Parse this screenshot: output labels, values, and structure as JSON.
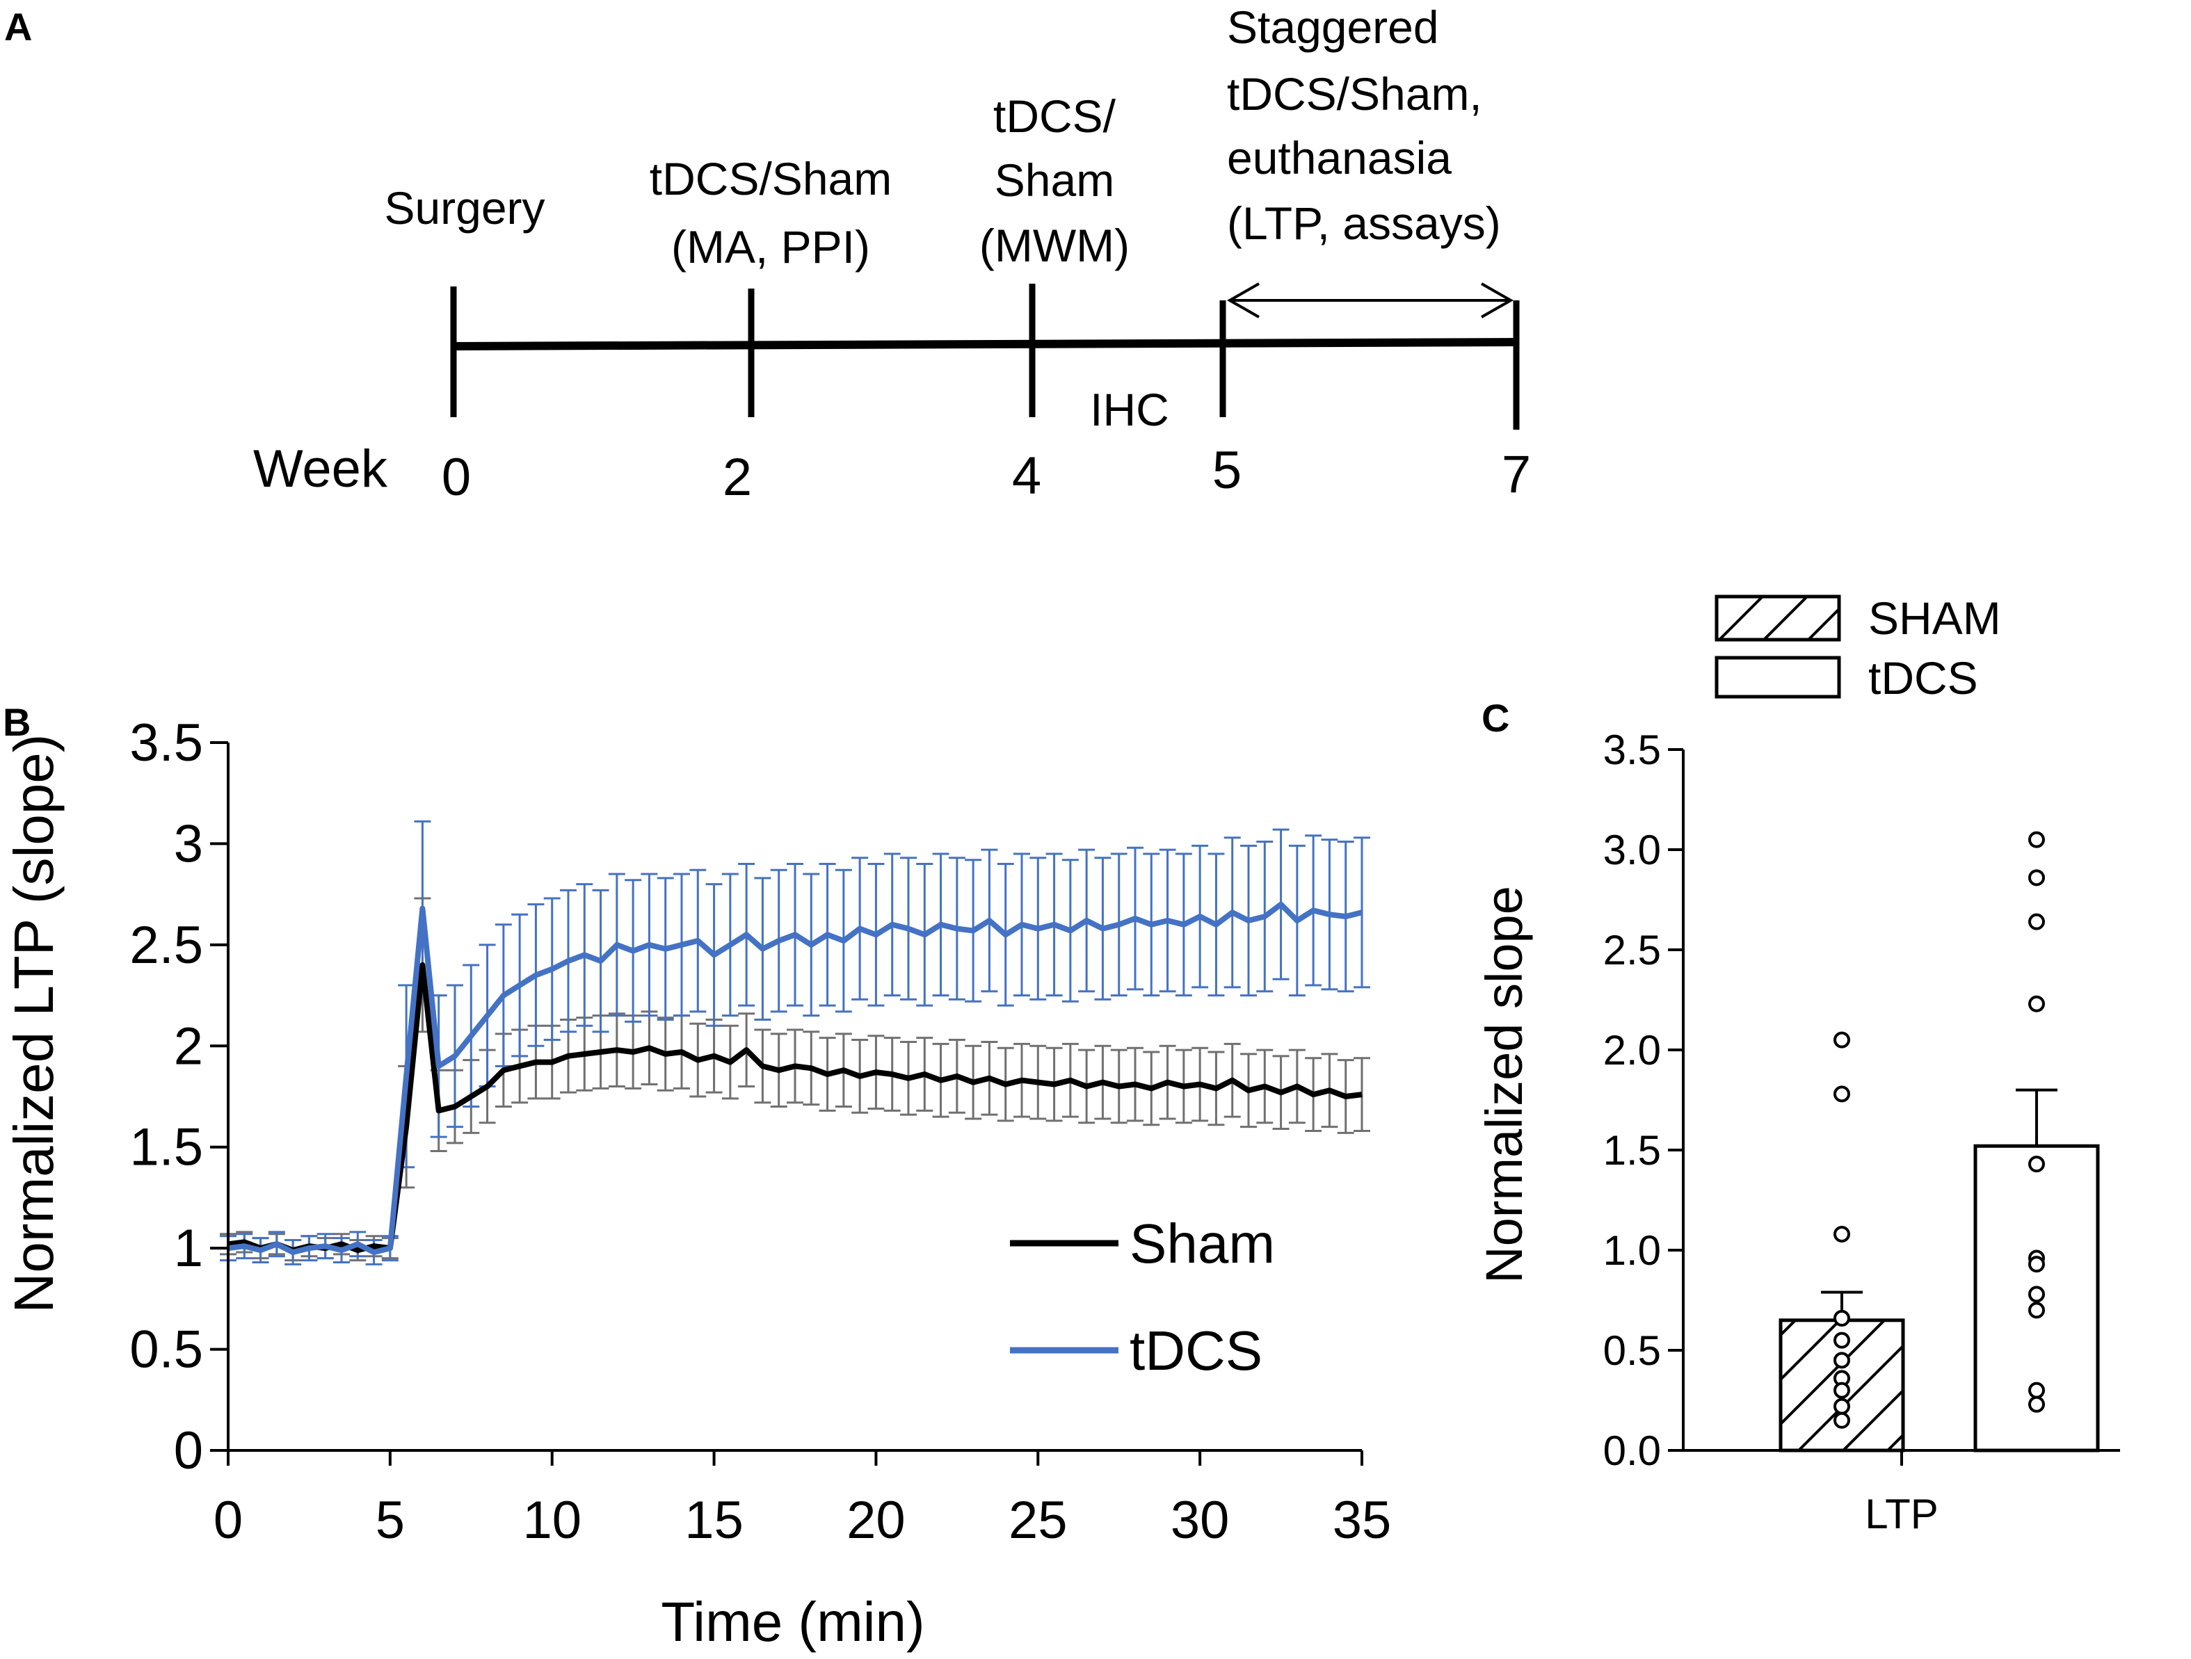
{
  "panels": {
    "A": {
      "letter": "A"
    },
    "B": {
      "letter": "B"
    },
    "C": {
      "letter": "C"
    }
  },
  "timeline": {
    "week_label": "Week",
    "events": [
      {
        "week": "0",
        "lines": [
          "Surgery"
        ]
      },
      {
        "week": "2",
        "lines": [
          "tDCS/Sham",
          "(MA, PPI)"
        ]
      },
      {
        "week": "4",
        "lines": [
          "tDCS/",
          "Sham",
          "(MWM)"
        ]
      },
      {
        "week": "5",
        "lines": [
          "Staggered",
          "tDCS/Sham,",
          "euthanasia",
          "(LTP, assays)"
        ]
      },
      {
        "week": "7",
        "lines": []
      }
    ],
    "between_label": "IHC"
  },
  "chart_data": [
    {
      "type": "line",
      "panel": "B",
      "xlabel": "Time (min)",
      "ylabel": "Normalized LTP (slope)",
      "xlim": [
        0,
        35
      ],
      "ylim": [
        0,
        3.5
      ],
      "xticks": [
        "0",
        "5",
        "10",
        "15",
        "20",
        "25",
        "30",
        "35"
      ],
      "yticks": [
        "0",
        "0.5",
        "1",
        "1.5",
        "2",
        "2.5",
        "3",
        "3.5"
      ],
      "legend_position": "center-right",
      "series": [
        {
          "name": "Sham",
          "color": "#000000",
          "error_color": "#707070",
          "x": [
            0,
            0.5,
            1,
            1.5,
            2,
            2.5,
            3,
            3.5,
            4,
            4.5,
            5,
            5.5,
            6,
            6.5,
            7,
            7.5,
            8,
            8.5,
            9,
            9.5,
            10,
            10.5,
            11,
            11.5,
            12,
            12.5,
            13,
            13.5,
            14,
            14.5,
            15,
            15.5,
            16,
            16.5,
            17,
            17.5,
            18,
            18.5,
            19,
            19.5,
            20,
            20.5,
            21,
            21.5,
            22,
            22.5,
            23,
            23.5,
            24,
            24.5,
            25,
            25.5,
            26,
            26.5,
            27,
            27.5,
            28,
            28.5,
            29,
            29.5,
            30,
            30.5,
            31,
            31.5,
            32,
            32.5,
            33,
            33.5,
            34,
            34.5,
            35
          ],
          "y": [
            1.02,
            1.03,
            1.0,
            1.02,
            0.99,
            1.01,
            1.0,
            1.02,
            0.99,
            1.01,
            1.0,
            1.6,
            2.4,
            1.68,
            1.7,
            1.75,
            1.8,
            1.88,
            1.9,
            1.92,
            1.92,
            1.95,
            1.96,
            1.97,
            1.98,
            1.97,
            1.99,
            1.96,
            1.97,
            1.93,
            1.95,
            1.92,
            1.98,
            1.9,
            1.88,
            1.9,
            1.89,
            1.86,
            1.88,
            1.85,
            1.87,
            1.86,
            1.84,
            1.86,
            1.83,
            1.85,
            1.82,
            1.84,
            1.81,
            1.83,
            1.82,
            1.81,
            1.83,
            1.8,
            1.82,
            1.8,
            1.81,
            1.79,
            1.82,
            1.8,
            1.81,
            1.79,
            1.83,
            1.78,
            1.8,
            1.77,
            1.8,
            1.76,
            1.78,
            1.75,
            1.76
          ],
          "error": [
            0.05,
            0.05,
            0.05,
            0.05,
            0.05,
            0.05,
            0.05,
            0.05,
            0.05,
            0.05,
            0.05,
            0.3,
            0.33,
            0.2,
            0.18,
            0.18,
            0.18,
            0.18,
            0.18,
            0.18,
            0.18,
            0.18,
            0.18,
            0.18,
            0.18,
            0.18,
            0.18,
            0.18,
            0.18,
            0.18,
            0.18,
            0.18,
            0.18,
            0.18,
            0.18,
            0.18,
            0.18,
            0.18,
            0.18,
            0.18,
            0.18,
            0.18,
            0.18,
            0.18,
            0.18,
            0.18,
            0.18,
            0.18,
            0.18,
            0.18,
            0.18,
            0.18,
            0.18,
            0.18,
            0.18,
            0.18,
            0.18,
            0.18,
            0.18,
            0.18,
            0.18,
            0.18,
            0.18,
            0.18,
            0.18,
            0.18,
            0.18,
            0.18,
            0.18,
            0.18,
            0.18
          ]
        },
        {
          "name": "tDCS",
          "color": "#4472c4",
          "error_color": "#4472c4",
          "x": [
            0,
            0.5,
            1,
            1.5,
            2,
            2.5,
            3,
            3.5,
            4,
            4.5,
            5,
            5.5,
            6,
            6.5,
            7,
            7.5,
            8,
            8.5,
            9,
            9.5,
            10,
            10.5,
            11,
            11.5,
            12,
            12.5,
            13,
            13.5,
            14,
            14.5,
            15,
            15.5,
            16,
            16.5,
            17,
            17.5,
            18,
            18.5,
            19,
            19.5,
            20,
            20.5,
            21,
            21.5,
            22,
            22.5,
            23,
            23.5,
            24,
            24.5,
            25,
            25.5,
            26,
            26.5,
            27,
            27.5,
            28,
            28.5,
            29,
            29.5,
            30,
            30.5,
            31,
            31.5,
            32,
            32.5,
            33,
            33.5,
            34,
            34.5,
            35
          ],
          "y": [
            1.0,
            1.01,
            0.99,
            1.02,
            0.98,
            1.0,
            1.01,
            0.99,
            1.02,
            0.98,
            1.0,
            1.85,
            2.68,
            1.9,
            1.95,
            2.05,
            2.15,
            2.25,
            2.3,
            2.35,
            2.38,
            2.42,
            2.45,
            2.42,
            2.5,
            2.47,
            2.5,
            2.48,
            2.5,
            2.52,
            2.45,
            2.5,
            2.55,
            2.48,
            2.52,
            2.55,
            2.5,
            2.55,
            2.52,
            2.58,
            2.55,
            2.6,
            2.58,
            2.55,
            2.6,
            2.58,
            2.57,
            2.62,
            2.55,
            2.6,
            2.58,
            2.6,
            2.57,
            2.62,
            2.58,
            2.6,
            2.63,
            2.6,
            2.62,
            2.6,
            2.64,
            2.6,
            2.66,
            2.62,
            2.64,
            2.7,
            2.62,
            2.67,
            2.65,
            2.64,
            2.66
          ],
          "error": [
            0.06,
            0.06,
            0.06,
            0.06,
            0.06,
            0.06,
            0.06,
            0.06,
            0.06,
            0.06,
            0.06,
            0.45,
            0.43,
            0.35,
            0.35,
            0.35,
            0.35,
            0.35,
            0.35,
            0.35,
            0.35,
            0.35,
            0.35,
            0.35,
            0.35,
            0.35,
            0.35,
            0.35,
            0.35,
            0.35,
            0.35,
            0.35,
            0.35,
            0.35,
            0.35,
            0.35,
            0.35,
            0.35,
            0.35,
            0.35,
            0.35,
            0.35,
            0.35,
            0.35,
            0.35,
            0.35,
            0.35,
            0.35,
            0.35,
            0.35,
            0.35,
            0.35,
            0.35,
            0.35,
            0.35,
            0.35,
            0.35,
            0.35,
            0.35,
            0.35,
            0.35,
            0.35,
            0.37,
            0.37,
            0.37,
            0.37,
            0.37,
            0.37,
            0.37,
            0.37,
            0.37
          ]
        }
      ]
    },
    {
      "type": "bar",
      "panel": "C",
      "categories": [
        "LTP"
      ],
      "ylabel": "Normalized slope",
      "ylim": [
        0,
        3.5
      ],
      "yticks": [
        "0.0",
        "0.5",
        "1.0",
        "1.5",
        "2.0",
        "2.5",
        "3.0",
        "3.5"
      ],
      "legend_position": "top",
      "series": [
        {
          "name": "SHAM",
          "pattern": "hatched",
          "value": 0.65,
          "sem": 0.14,
          "points": [
            2.05,
            1.78,
            1.08,
            0.66,
            0.55,
            0.45,
            0.36,
            0.3,
            0.22,
            0.15
          ]
        },
        {
          "name": "tDCS",
          "pattern": "open",
          "value": 1.52,
          "sem": 0.28,
          "points": [
            3.05,
            2.86,
            2.64,
            2.23,
            1.43,
            0.96,
            0.93,
            0.78,
            0.7,
            0.3,
            0.23
          ]
        }
      ]
    }
  ]
}
